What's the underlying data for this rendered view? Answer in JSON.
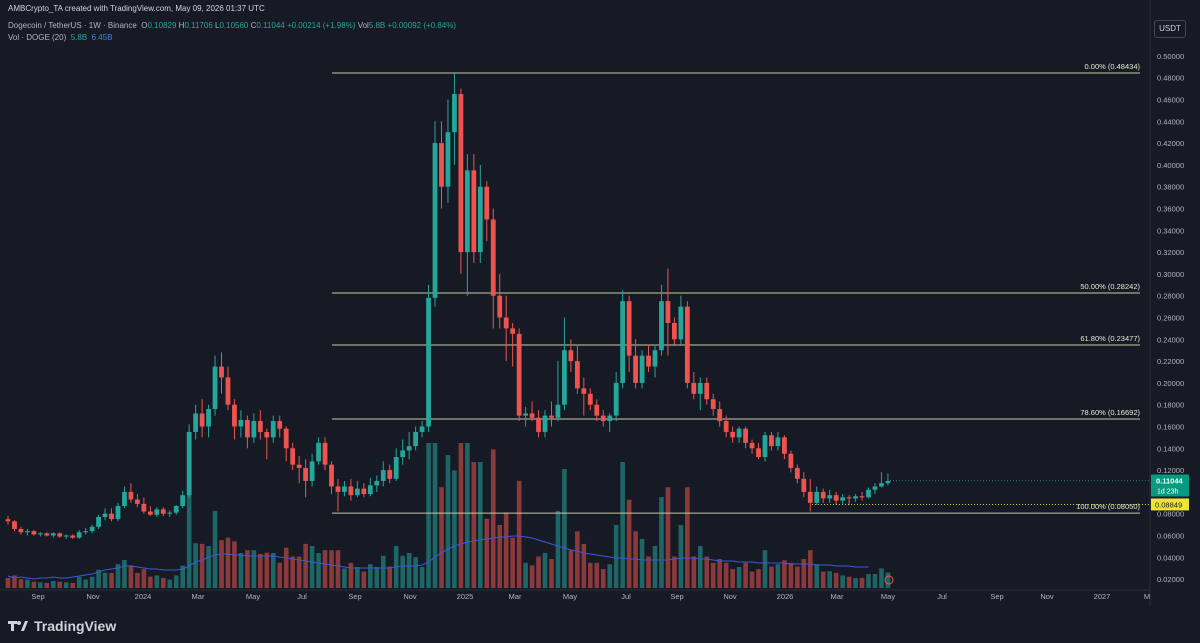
{
  "header": {
    "created": "AMBCrypto_TA created with TradingView.com, May 09, 2026 01:37 UTC",
    "symbol": "Dogecoin / TetherUS · 1W · Binance",
    "o_label": "O",
    "o": "0.10829",
    "h_label": "H",
    "h": "0.11706",
    "l_label": "L",
    "l": "0.10560",
    "c_label": "C",
    "c": "0.11044",
    "change": "+0.00214 (+1.98%)",
    "vol_label": "Vol",
    "vol": "5.8B",
    "vol_change": "+0.00092 (+0.84%)",
    "vol_indicator": "Vol · DOGE (20)",
    "vol_value": "5.8B",
    "vol_ma": "6.45B",
    "currency": "USDT"
  },
  "footer": {
    "brand": "TradingView"
  },
  "colors": {
    "up": "#26a69a",
    "down": "#ef5350",
    "ma": "#3b58d9",
    "fib": "#c9c9a6",
    "price_badge": "#089981",
    "low_badge": "#f0e23c"
  },
  "chart_data": {
    "type": "candlestick",
    "timeframe": "1W",
    "y_axis": {
      "ylim": [
        0.01,
        0.51
      ],
      "ticks": [
        "0.50000",
        "0.48000",
        "0.46000",
        "0.44000",
        "0.42000",
        "0.40000",
        "0.38000",
        "0.36000",
        "0.34000",
        "0.32000",
        "0.30000",
        "0.28000",
        "0.26000",
        "0.24000",
        "0.22000",
        "0.20000",
        "0.18000",
        "0.16000",
        "0.14000",
        "0.12000",
        "0.10000",
        "0.08000",
        "0.06000",
        "0.04000",
        "0.02000"
      ]
    },
    "x_axis": {
      "ticks": [
        "Sep",
        "Nov",
        "2024",
        "Mar",
        "May",
        "Jul",
        "Sep",
        "Nov",
        "2025",
        "Mar",
        "May",
        "Jul",
        "Sep",
        "Nov",
        "2026",
        "Mar",
        "May",
        "Jul",
        "Sep",
        "Nov",
        "2027",
        "M"
      ]
    },
    "fib_levels": [
      {
        "label": "0.00% (0.48434)",
        "value": 0.48434
      },
      {
        "label": "50.00% (0.28242)",
        "value": 0.28242
      },
      {
        "label": "61.80% (0.23477)",
        "value": 0.23477
      },
      {
        "label": "78.60% (0.16692)",
        "value": 0.16692
      },
      {
        "label": "100.00% (0.08050)",
        "value": 0.0805
      }
    ],
    "last_price": {
      "value": 0.11044,
      "label": "0.11044",
      "countdown": "1d 23h"
    },
    "low_marker": {
      "value": 0.08849,
      "label": "0.08849"
    },
    "candles": [
      [
        0.075,
        0.078,
        0.07,
        0.073
      ],
      [
        0.073,
        0.074,
        0.064,
        0.066
      ],
      [
        0.066,
        0.068,
        0.061,
        0.063
      ],
      [
        0.063,
        0.066,
        0.06,
        0.064
      ],
      [
        0.064,
        0.065,
        0.06,
        0.061
      ],
      [
        0.061,
        0.063,
        0.059,
        0.062
      ],
      [
        0.062,
        0.063,
        0.059,
        0.06
      ],
      [
        0.06,
        0.063,
        0.058,
        0.062
      ],
      [
        0.062,
        0.063,
        0.058,
        0.059
      ],
      [
        0.059,
        0.061,
        0.057,
        0.06
      ],
      [
        0.06,
        0.061,
        0.057,
        0.058
      ],
      [
        0.058,
        0.065,
        0.057,
        0.063
      ],
      [
        0.063,
        0.067,
        0.061,
        0.064
      ],
      [
        0.064,
        0.07,
        0.062,
        0.068
      ],
      [
        0.068,
        0.079,
        0.066,
        0.077
      ],
      [
        0.077,
        0.085,
        0.074,
        0.08
      ],
      [
        0.08,
        0.085,
        0.073,
        0.075
      ],
      [
        0.075,
        0.09,
        0.073,
        0.087
      ],
      [
        0.087,
        0.105,
        0.085,
        0.1
      ],
      [
        0.1,
        0.108,
        0.09,
        0.093
      ],
      [
        0.093,
        0.098,
        0.086,
        0.089
      ],
      [
        0.089,
        0.095,
        0.08,
        0.082
      ],
      [
        0.082,
        0.087,
        0.078,
        0.079
      ],
      [
        0.079,
        0.086,
        0.077,
        0.084
      ],
      [
        0.084,
        0.086,
        0.078,
        0.08
      ],
      [
        0.08,
        0.083,
        0.077,
        0.081
      ],
      [
        0.081,
        0.088,
        0.079,
        0.087
      ],
      [
        0.087,
        0.101,
        0.085,
        0.097
      ],
      [
        0.097,
        0.162,
        0.095,
        0.155
      ],
      [
        0.155,
        0.18,
        0.148,
        0.172
      ],
      [
        0.172,
        0.185,
        0.15,
        0.16
      ],
      [
        0.16,
        0.18,
        0.15,
        0.176
      ],
      [
        0.176,
        0.225,
        0.17,
        0.215
      ],
      [
        0.215,
        0.228,
        0.19,
        0.205
      ],
      [
        0.205,
        0.215,
        0.175,
        0.18
      ],
      [
        0.18,
        0.185,
        0.148,
        0.16
      ],
      [
        0.16,
        0.175,
        0.15,
        0.166
      ],
      [
        0.166,
        0.17,
        0.14,
        0.15
      ],
      [
        0.15,
        0.172,
        0.145,
        0.165
      ],
      [
        0.165,
        0.175,
        0.148,
        0.155
      ],
      [
        0.155,
        0.158,
        0.13,
        0.15
      ],
      [
        0.15,
        0.17,
        0.145,
        0.165
      ],
      [
        0.165,
        0.17,
        0.15,
        0.158
      ],
      [
        0.158,
        0.16,
        0.128,
        0.14
      ],
      [
        0.14,
        0.145,
        0.12,
        0.125
      ],
      [
        0.125,
        0.133,
        0.108,
        0.122
      ],
      [
        0.122,
        0.13,
        0.095,
        0.11
      ],
      [
        0.11,
        0.135,
        0.105,
        0.128
      ],
      [
        0.128,
        0.15,
        0.125,
        0.145
      ],
      [
        0.145,
        0.15,
        0.12,
        0.125
      ],
      [
        0.125,
        0.128,
        0.098,
        0.105
      ],
      [
        0.105,
        0.112,
        0.082,
        0.1
      ],
      [
        0.1,
        0.11,
        0.096,
        0.105
      ],
      [
        0.105,
        0.112,
        0.092,
        0.097
      ],
      [
        0.097,
        0.11,
        0.095,
        0.103
      ],
      [
        0.103,
        0.108,
        0.095,
        0.098
      ],
      [
        0.098,
        0.113,
        0.096,
        0.106
      ],
      [
        0.106,
        0.115,
        0.1,
        0.11
      ],
      [
        0.11,
        0.128,
        0.105,
        0.12
      ],
      [
        0.12,
        0.125,
        0.108,
        0.112
      ],
      [
        0.112,
        0.14,
        0.11,
        0.132
      ],
      [
        0.132,
        0.148,
        0.125,
        0.138
      ],
      [
        0.138,
        0.155,
        0.13,
        0.142
      ],
      [
        0.142,
        0.16,
        0.138,
        0.155
      ],
      [
        0.155,
        0.165,
        0.15,
        0.16
      ],
      [
        0.16,
        0.29,
        0.155,
        0.278
      ],
      [
        0.278,
        0.44,
        0.27,
        0.42
      ],
      [
        0.42,
        0.44,
        0.36,
        0.38
      ],
      [
        0.38,
        0.46,
        0.365,
        0.43
      ],
      [
        0.43,
        0.484,
        0.4,
        0.465
      ],
      [
        0.465,
        0.47,
        0.3,
        0.32
      ],
      [
        0.32,
        0.41,
        0.28,
        0.395
      ],
      [
        0.395,
        0.41,
        0.31,
        0.32
      ],
      [
        0.32,
        0.4,
        0.31,
        0.38
      ],
      [
        0.38,
        0.385,
        0.33,
        0.35
      ],
      [
        0.35,
        0.36,
        0.25,
        0.28
      ],
      [
        0.28,
        0.3,
        0.25,
        0.26
      ],
      [
        0.26,
        0.28,
        0.22,
        0.25
      ],
      [
        0.25,
        0.255,
        0.215,
        0.245
      ],
      [
        0.245,
        0.25,
        0.165,
        0.17
      ],
      [
        0.17,
        0.178,
        0.16,
        0.172
      ],
      [
        0.172,
        0.183,
        0.165,
        0.168
      ],
      [
        0.168,
        0.175,
        0.15,
        0.155
      ],
      [
        0.155,
        0.175,
        0.15,
        0.17
      ],
      [
        0.17,
        0.183,
        0.16,
        0.168
      ],
      [
        0.168,
        0.22,
        0.165,
        0.18
      ],
      [
        0.18,
        0.26,
        0.175,
        0.23
      ],
      [
        0.23,
        0.24,
        0.21,
        0.22
      ],
      [
        0.22,
        0.235,
        0.19,
        0.195
      ],
      [
        0.195,
        0.205,
        0.17,
        0.19
      ],
      [
        0.19,
        0.195,
        0.175,
        0.18
      ],
      [
        0.18,
        0.185,
        0.165,
        0.17
      ],
      [
        0.17,
        0.175,
        0.16,
        0.165
      ],
      [
        0.165,
        0.172,
        0.155,
        0.17
      ],
      [
        0.17,
        0.21,
        0.165,
        0.2
      ],
      [
        0.2,
        0.285,
        0.195,
        0.275
      ],
      [
        0.275,
        0.28,
        0.21,
        0.225
      ],
      [
        0.225,
        0.24,
        0.195,
        0.2
      ],
      [
        0.2,
        0.23,
        0.195,
        0.225
      ],
      [
        0.225,
        0.235,
        0.21,
        0.215
      ],
      [
        0.215,
        0.235,
        0.205,
        0.23
      ],
      [
        0.23,
        0.29,
        0.225,
        0.275
      ],
      [
        0.275,
        0.305,
        0.225,
        0.255
      ],
      [
        0.255,
        0.26,
        0.235,
        0.24
      ],
      [
        0.24,
        0.28,
        0.235,
        0.27
      ],
      [
        0.27,
        0.275,
        0.195,
        0.2
      ],
      [
        0.2,
        0.21,
        0.185,
        0.19
      ],
      [
        0.19,
        0.205,
        0.175,
        0.2
      ],
      [
        0.2,
        0.205,
        0.18,
        0.185
      ],
      [
        0.185,
        0.19,
        0.17,
        0.176
      ],
      [
        0.176,
        0.183,
        0.16,
        0.165
      ],
      [
        0.165,
        0.17,
        0.15,
        0.155
      ],
      [
        0.155,
        0.16,
        0.145,
        0.15
      ],
      [
        0.15,
        0.16,
        0.145,
        0.158
      ],
      [
        0.158,
        0.16,
        0.14,
        0.145
      ],
      [
        0.145,
        0.148,
        0.135,
        0.14
      ],
      [
        0.14,
        0.145,
        0.13,
        0.132
      ],
      [
        0.132,
        0.155,
        0.128,
        0.152
      ],
      [
        0.152,
        0.155,
        0.138,
        0.142
      ],
      [
        0.142,
        0.155,
        0.138,
        0.15
      ],
      [
        0.15,
        0.152,
        0.13,
        0.135
      ],
      [
        0.135,
        0.138,
        0.118,
        0.122
      ],
      [
        0.122,
        0.125,
        0.108,
        0.112
      ],
      [
        0.112,
        0.118,
        0.095,
        0.1
      ],
      [
        0.1,
        0.112,
        0.082,
        0.09
      ],
      [
        0.09,
        0.105,
        0.088,
        0.1
      ],
      [
        0.1,
        0.103,
        0.09,
        0.094
      ],
      [
        0.094,
        0.102,
        0.09,
        0.097
      ],
      [
        0.097,
        0.1,
        0.088,
        0.092
      ],
      [
        0.092,
        0.098,
        0.089,
        0.095
      ],
      [
        0.095,
        0.097,
        0.088,
        0.094
      ],
      [
        0.094,
        0.098,
        0.091,
        0.096
      ],
      [
        0.096,
        0.1,
        0.092,
        0.095
      ],
      [
        0.095,
        0.104,
        0.094,
        0.102
      ],
      [
        0.102,
        0.108,
        0.098,
        0.105
      ],
      [
        0.105,
        0.118,
        0.104,
        0.108
      ],
      [
        0.108,
        0.117,
        0.106,
        0.11
      ]
    ],
    "volume_ma": [
      0.012,
      0.01,
      0.011,
      0.01,
      0.009,
      0.01,
      0.01,
      0.011,
      0.01,
      0.01,
      0.011,
      0.012,
      0.013,
      0.014,
      0.016,
      0.018,
      0.019,
      0.02,
      0.022,
      0.022,
      0.021,
      0.02,
      0.019,
      0.019,
      0.018,
      0.018,
      0.018,
      0.019,
      0.022,
      0.026,
      0.028,
      0.031,
      0.033,
      0.034,
      0.034,
      0.033,
      0.033,
      0.032,
      0.032,
      0.032,
      0.032,
      0.032,
      0.031,
      0.03,
      0.029,
      0.028,
      0.027,
      0.026,
      0.025,
      0.024,
      0.023,
      0.022,
      0.021,
      0.02,
      0.02,
      0.02,
      0.02,
      0.02,
      0.02,
      0.02,
      0.021,
      0.022,
      0.022,
      0.022,
      0.023,
      0.026,
      0.031,
      0.035,
      0.039,
      0.042,
      0.044,
      0.046,
      0.047,
      0.048,
      0.049,
      0.05,
      0.051,
      0.051,
      0.052,
      0.052,
      0.051,
      0.05,
      0.048,
      0.046,
      0.044,
      0.042,
      0.04,
      0.038,
      0.037,
      0.035,
      0.034,
      0.033,
      0.032,
      0.031,
      0.03,
      0.03,
      0.029,
      0.029,
      0.028,
      0.028,
      0.028,
      0.028,
      0.028,
      0.029,
      0.03,
      0.03,
      0.03,
      0.029,
      0.029,
      0.028,
      0.027,
      0.027,
      0.027,
      0.026,
      0.026,
      0.026,
      0.025,
      0.025,
      0.025,
      0.025,
      0.025,
      0.024,
      0.024,
      0.024,
      0.024,
      0.023,
      0.023,
      0.023,
      0.022,
      0.022,
      0.022,
      0.021,
      0.021,
      0.021
    ]
  }
}
